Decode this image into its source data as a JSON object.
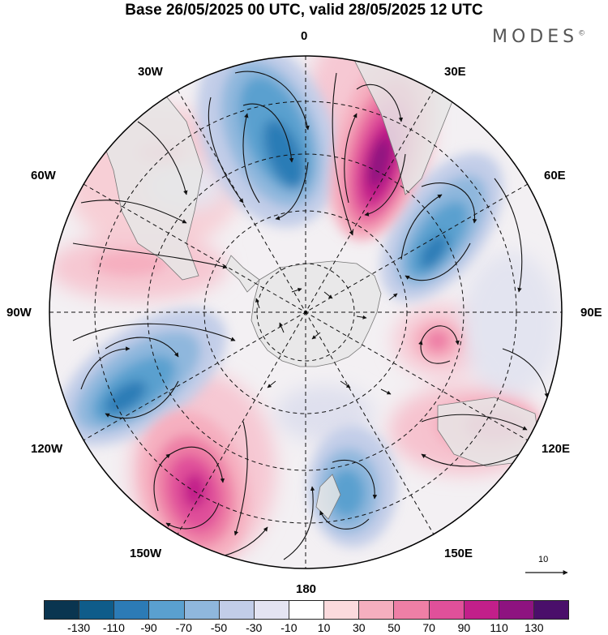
{
  "title": "Base 26/05/2025 00 UTC, valid 28/05/2025 12 UTC",
  "brand": {
    "name": "MODES",
    "mark": "©"
  },
  "map": {
    "projection": "south-polar-stereographic",
    "longitude_labels": [
      {
        "id": "lon-0",
        "text": "0"
      },
      {
        "id": "lon-30e",
        "text": "30E"
      },
      {
        "id": "lon-60e",
        "text": "60E"
      },
      {
        "id": "lon-90e",
        "text": "90E"
      },
      {
        "id": "lon-120e",
        "text": "120E"
      },
      {
        "id": "lon-150e",
        "text": "150E"
      },
      {
        "id": "lon-180",
        "text": "180"
      },
      {
        "id": "lon-150w",
        "text": "150W"
      },
      {
        "id": "lon-120w",
        "text": "120W"
      },
      {
        "id": "lon-90w",
        "text": "90W"
      },
      {
        "id": "lon-60w",
        "text": "60W"
      },
      {
        "id": "lon-30w",
        "text": "30W"
      }
    ],
    "gridlines": "dashed",
    "land_color": "#e6e6e6",
    "vector_reference": {
      "length_label": "10"
    }
  },
  "colorbar": {
    "colors": [
      "#0a3550",
      "#0f5c8a",
      "#2c7bb6",
      "#5aa0cf",
      "#8fb7dd",
      "#c2cde8",
      "#e4e4f2",
      "#ffffff",
      "#fbdadd",
      "#f5afbf",
      "#ee7fa6",
      "#e0509a",
      "#c21f8a",
      "#8e1380",
      "#4a0f6a"
    ],
    "tick_labels": [
      "-130",
      "-110",
      "-90",
      "-70",
      "-50",
      "-30",
      "-10",
      "10",
      "30",
      "50",
      "70",
      "90",
      "110",
      "130"
    ]
  }
}
